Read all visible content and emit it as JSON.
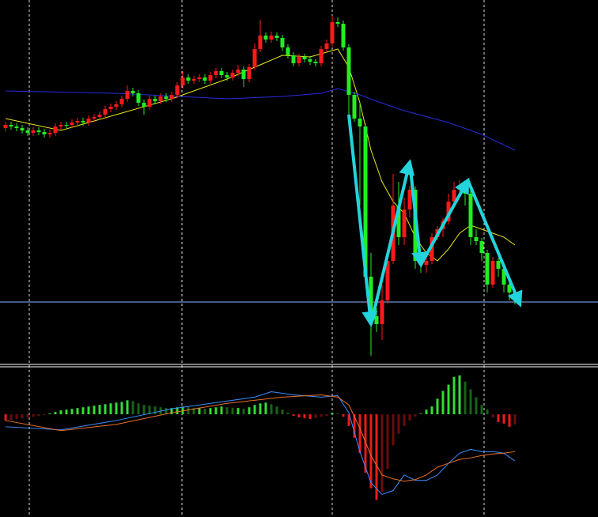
{
  "chart_data": [
    {
      "type": "candlestick",
      "ylim": [
        0,
        460
      ],
      "up_color": "#ff1a1a",
      "down_color": "#22ee22",
      "candles": [
        [
          298,
          306,
          294,
          302
        ],
        [
          302,
          306,
          296,
          300
        ],
        [
          300,
          304,
          294,
          298
        ],
        [
          298,
          302,
          291,
          295
        ],
        [
          295,
          299,
          288,
          292
        ],
        [
          292,
          299,
          288,
          295
        ],
        [
          295,
          299,
          289,
          293
        ],
        [
          293,
          297,
          286,
          290
        ],
        [
          290,
          296,
          286,
          292
        ],
        [
          292,
          304,
          288,
          300
        ],
        [
          300,
          306,
          296,
          302
        ],
        [
          302,
          306,
          298,
          302
        ],
        [
          302,
          309,
          298,
          305
        ],
        [
          305,
          311,
          301,
          307
        ],
        [
          307,
          311,
          301,
          305
        ],
        [
          305,
          314,
          301,
          310
        ],
        [
          310,
          316,
          306,
          312
        ],
        [
          312,
          319,
          308,
          315
        ],
        [
          315,
          326,
          311,
          322
        ],
        [
          322,
          329,
          318,
          325
        ],
        [
          325,
          332,
          321,
          328
        ],
        [
          328,
          339,
          324,
          335
        ],
        [
          335,
          352,
          331,
          345
        ],
        [
          345,
          349,
          338,
          342
        ],
        [
          342,
          346,
          326,
          330
        ],
        [
          330,
          334,
          315,
          325
        ],
        [
          325,
          339,
          321,
          335
        ],
        [
          335,
          339,
          328,
          332
        ],
        [
          332,
          342,
          328,
          338
        ],
        [
          338,
          342,
          331,
          335
        ],
        [
          335,
          344,
          331,
          340
        ],
        [
          340,
          356,
          336,
          352
        ],
        [
          352,
          370,
          348,
          362
        ],
        [
          362,
          366,
          354,
          358
        ],
        [
          358,
          364,
          354,
          360
        ],
        [
          360,
          366,
          356,
          362
        ],
        [
          362,
          366,
          354,
          358
        ],
        [
          358,
          369,
          354,
          365
        ],
        [
          365,
          374,
          361,
          370
        ],
        [
          370,
          374,
          361,
          365
        ],
        [
          365,
          369,
          358,
          362
        ],
        [
          362,
          372,
          358,
          368
        ],
        [
          368,
          378,
          364,
          372
        ],
        [
          372,
          376,
          350,
          360
        ],
        [
          360,
          379,
          356,
          375
        ],
        [
          375,
          405,
          371,
          398
        ],
        [
          398,
          435,
          394,
          415
        ],
        [
          415,
          419,
          406,
          410
        ],
        [
          410,
          420,
          406,
          415
        ],
        [
          415,
          419,
          408,
          412
        ],
        [
          412,
          416,
          396,
          400
        ],
        [
          400,
          404,
          386,
          390
        ],
        [
          390,
          394,
          376,
          380
        ],
        [
          380,
          392,
          376,
          388
        ],
        [
          388,
          392,
          381,
          385
        ],
        [
          385,
          389,
          378,
          382
        ],
        [
          382,
          386,
          376,
          380
        ],
        [
          380,
          402,
          376,
          398
        ],
        [
          398,
          410,
          394,
          405
        ],
        [
          405,
          440,
          401,
          432
        ],
        [
          432,
          438,
          426,
          430
        ],
        [
          430,
          434,
          396,
          400
        ],
        [
          400,
          404,
          300,
          340
        ],
        [
          340,
          344,
          306,
          310
        ],
        [
          310,
          330,
          200,
          300
        ],
        [
          300,
          304,
          100,
          110
        ],
        [
          110,
          140,
          10,
          60
        ],
        [
          60,
          70,
          40,
          50
        ],
        [
          50,
          100,
          30,
          80
        ],
        [
          80,
          140,
          76,
          130
        ],
        [
          130,
          240,
          126,
          200
        ],
        [
          200,
          230,
          150,
          160
        ],
        [
          160,
          210,
          150,
          195
        ],
        [
          195,
          225,
          185,
          220
        ],
        [
          220,
          224,
          120,
          130
        ],
        [
          130,
          140,
          115,
          125
        ],
        [
          125,
          140,
          115,
          130
        ],
        [
          130,
          165,
          126,
          160
        ],
        [
          160,
          174,
          156,
          170
        ],
        [
          170,
          184,
          160,
          180
        ],
        [
          180,
          215,
          176,
          205
        ],
        [
          205,
          230,
          201,
          220
        ],
        [
          220,
          232,
          210,
          225
        ],
        [
          225,
          229,
          200,
          215
        ],
        [
          215,
          219,
          150,
          160
        ],
        [
          160,
          170,
          150,
          155
        ],
        [
          155,
          159,
          130,
          140
        ],
        [
          140,
          144,
          90,
          100
        ],
        [
          100,
          135,
          96,
          130
        ],
        [
          130,
          134,
          110,
          120
        ],
        [
          120,
          124,
          90,
          100
        ],
        [
          100,
          104,
          80,
          90
        ],
        [
          90,
          94,
          75,
          82
        ]
      ],
      "series": [
        {
          "color": "#e6e61a",
          "x": [
            0,
            10,
            20,
            30,
            40,
            45,
            50,
            55,
            60,
            62,
            64,
            66,
            68,
            70,
            72,
            74,
            76,
            78,
            80,
            82,
            84,
            86,
            88,
            90,
            92
          ],
          "values": [
            310,
            295,
            315,
            335,
            360,
            375,
            390,
            388,
            398,
            375,
            330,
            270,
            230,
            205,
            190,
            160,
            140,
            130,
            145,
            165,
            175,
            170,
            165,
            160,
            150
          ]
        },
        {
          "color": "#2a2ae0",
          "x": [
            0,
            20,
            40,
            50,
            57,
            60,
            64,
            67,
            72,
            80,
            86,
            92
          ],
          "values": [
            345,
            342,
            335,
            338,
            342,
            348,
            340,
            332,
            320,
            305,
            290,
            270
          ]
        }
      ],
      "hline": {
        "value": 78,
        "color": "#8fb4ff"
      },
      "trendline": {
        "color": "#22d4dc",
        "x": [
          62,
          66,
          73,
          75,
          83.5,
          92.9
        ],
        "values": [
          315,
          50,
          255,
          125,
          232,
          75
        ]
      }
    },
    {
      "type": "bar",
      "ylim": [
        -132,
        60
      ],
      "pos_color": "#33dd33",
      "neg_color": "#ee1a1a",
      "values": [
        -8,
        -7,
        -6,
        -5,
        -4,
        -3,
        -2,
        -1,
        1,
        3,
        5,
        6,
        7,
        8,
        9,
        10,
        11,
        12,
        13,
        14,
        15,
        16,
        18,
        17,
        14,
        12,
        11,
        10,
        9,
        8,
        8,
        9,
        10,
        9,
        8,
        8,
        7,
        8,
        9,
        10,
        9,
        8,
        8,
        7,
        9,
        12,
        14,
        15,
        13,
        10,
        6,
        2,
        -2,
        -4,
        -5,
        -6,
        -5,
        -3,
        -2,
        2,
        1,
        -3,
        -15,
        -30,
        -50,
        -75,
        -95,
        -110,
        -100,
        -70,
        -40,
        -25,
        -15,
        -8,
        -3,
        2,
        6,
        10,
        20,
        30,
        38,
        48,
        50,
        42,
        32,
        22,
        12,
        6,
        -4,
        -10,
        -12,
        -16,
        -13
      ],
      "series": [
        {
          "color": "#3a8fff",
          "x": [
            0,
            10,
            20,
            30,
            40,
            45,
            48,
            52,
            57,
            60,
            62,
            64,
            66,
            68,
            70,
            72,
            74,
            76,
            78,
            80,
            82,
            84,
            86,
            88,
            90,
            92
          ],
          "values": [
            -16,
            -20,
            -8,
            7,
            17,
            22,
            29,
            25,
            22,
            24,
            2,
            -48,
            -88,
            -103,
            -98,
            -78,
            -85,
            -85,
            -78,
            -63,
            -50,
            -45,
            -48,
            -48,
            -50,
            -60
          ]
        },
        {
          "color": "#e8702a",
          "x": [
            0,
            10,
            20,
            30,
            40,
            50,
            57,
            60,
            62,
            64,
            66,
            68,
            70,
            72,
            74,
            76,
            78,
            80,
            82,
            84,
            86,
            88,
            90,
            92
          ],
          "values": [
            -8,
            -21,
            -13,
            2,
            14,
            22,
            25,
            22,
            12,
            -18,
            -53,
            -78,
            -83,
            -86,
            -84,
            -78,
            -68,
            -63,
            -58,
            -56,
            -53,
            -51,
            -50,
            -48
          ]
        }
      ]
    }
  ]
}
